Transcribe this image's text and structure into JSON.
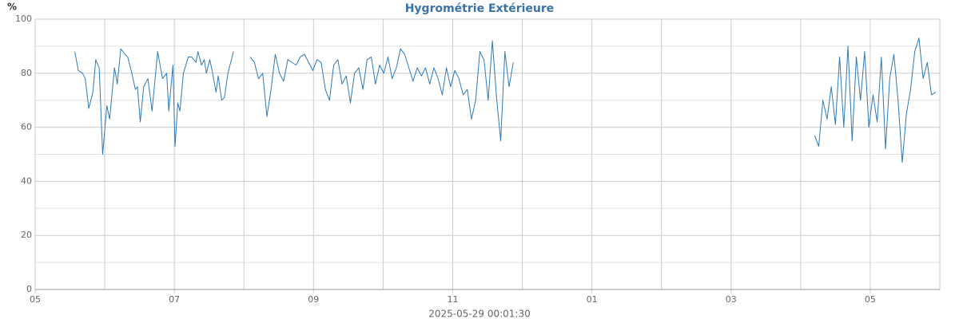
{
  "chart_data": {
    "type": "line",
    "title": "Hygrométrie Extérieure",
    "ylabel": "%",
    "xlabel": "2025-05-29 00:01:30",
    "xlim": [
      0,
      13
    ],
    "xticks": [
      {
        "value": 0,
        "label": "05"
      },
      {
        "value": 2,
        "label": "07"
      },
      {
        "value": 4,
        "label": "09"
      },
      {
        "value": 6,
        "label": "11"
      },
      {
        "value": 8,
        "label": "01"
      },
      {
        "value": 10,
        "label": "03"
      },
      {
        "value": 12,
        "label": "05"
      }
    ],
    "xgrid_minor": [
      1,
      3,
      5,
      7,
      9,
      11,
      13
    ],
    "ylim": [
      0,
      100
    ],
    "yticks": [
      0,
      20,
      40,
      60,
      80,
      100
    ],
    "ygrid_minor": [
      10,
      30,
      50,
      70,
      90
    ],
    "grid": true,
    "x": [
      0.57,
      0.62,
      0.68,
      0.72,
      0.77,
      0.83,
      0.87,
      0.92,
      0.97,
      1.03,
      1.07,
      1.14,
      1.18,
      1.23,
      1.29,
      1.33,
      1.39,
      1.44,
      1.47,
      1.51,
      1.56,
      1.62,
      1.68,
      1.76,
      1.83,
      1.89,
      1.92,
      1.98,
      2.01,
      2.05,
      2.08,
      2.13,
      2.2,
      2.25,
      2.31,
      2.34,
      2.39,
      2.43,
      2.46,
      2.51,
      2.55,
      2.6,
      2.63,
      2.68,
      2.72,
      2.77,
      2.85,
      2.97,
      3.09,
      3.15,
      3.21,
      3.27,
      3.33,
      3.39,
      3.45,
      3.51,
      3.57,
      3.63,
      3.69,
      3.75,
      3.81,
      3.87,
      3.93,
      3.99,
      4.05,
      4.11,
      4.17,
      4.23,
      4.29,
      4.35,
      4.41,
      4.47,
      4.53,
      4.59,
      4.65,
      4.71,
      4.77,
      4.83,
      4.89,
      4.95,
      5.01,
      5.07,
      5.13,
      5.19,
      5.25,
      5.31,
      5.37,
      5.43,
      5.49,
      5.55,
      5.61,
      5.67,
      5.73,
      5.79,
      5.85,
      5.91,
      5.97,
      6.03,
      6.09,
      6.15,
      6.21,
      6.27,
      6.33,
      6.39,
      6.45,
      6.51,
      6.57,
      6.63,
      6.69,
      6.75,
      6.81,
      6.87,
      9,
      11.2,
      11.26,
      11.32,
      11.38,
      11.44,
      11.5,
      11.56,
      11.62,
      11.68,
      11.74,
      11.8,
      11.86,
      11.92,
      11.98,
      12.04,
      12.1,
      12.16,
      12.22,
      12.28,
      12.34,
      12.4,
      12.46,
      12.52,
      12.58,
      12.64,
      12.7,
      12.76,
      12.82,
      12.88,
      12.94
    ],
    "series": [
      {
        "color": "#2f79b5",
        "values": [
          88,
          81,
          80,
          78,
          67,
          73,
          85,
          82,
          50,
          68,
          63,
          82,
          76,
          89,
          87,
          86,
          80,
          74,
          75,
          62,
          75,
          78,
          66,
          88,
          78,
          80,
          66,
          83,
          53,
          69,
          66,
          80,
          86,
          86,
          84,
          88,
          83,
          85,
          80,
          85,
          80,
          73,
          79,
          70,
          71,
          80,
          88,
          null,
          86,
          84,
          78,
          80,
          64,
          74,
          87,
          80,
          77,
          85,
          84,
          83,
          86,
          87,
          84,
          81,
          85,
          84,
          74,
          70,
          83,
          85,
          76,
          79,
          69,
          80,
          82,
          74,
          85,
          86,
          76,
          83,
          80,
          86,
          78,
          82,
          89,
          87,
          82,
          77,
          82,
          79,
          82,
          76,
          82,
          78,
          72,
          82,
          75,
          81,
          78,
          72,
          74,
          63,
          70,
          88,
          85,
          70,
          92,
          71,
          55,
          88,
          75,
          84,
          null,
          57,
          53,
          70,
          63,
          75,
          61,
          86,
          60,
          90,
          55,
          86,
          70,
          88,
          60,
          72,
          62,
          86,
          52,
          78,
          87,
          70,
          47,
          65,
          74,
          88,
          93,
          78,
          84,
          72,
          73
        ]
      }
    ]
  }
}
